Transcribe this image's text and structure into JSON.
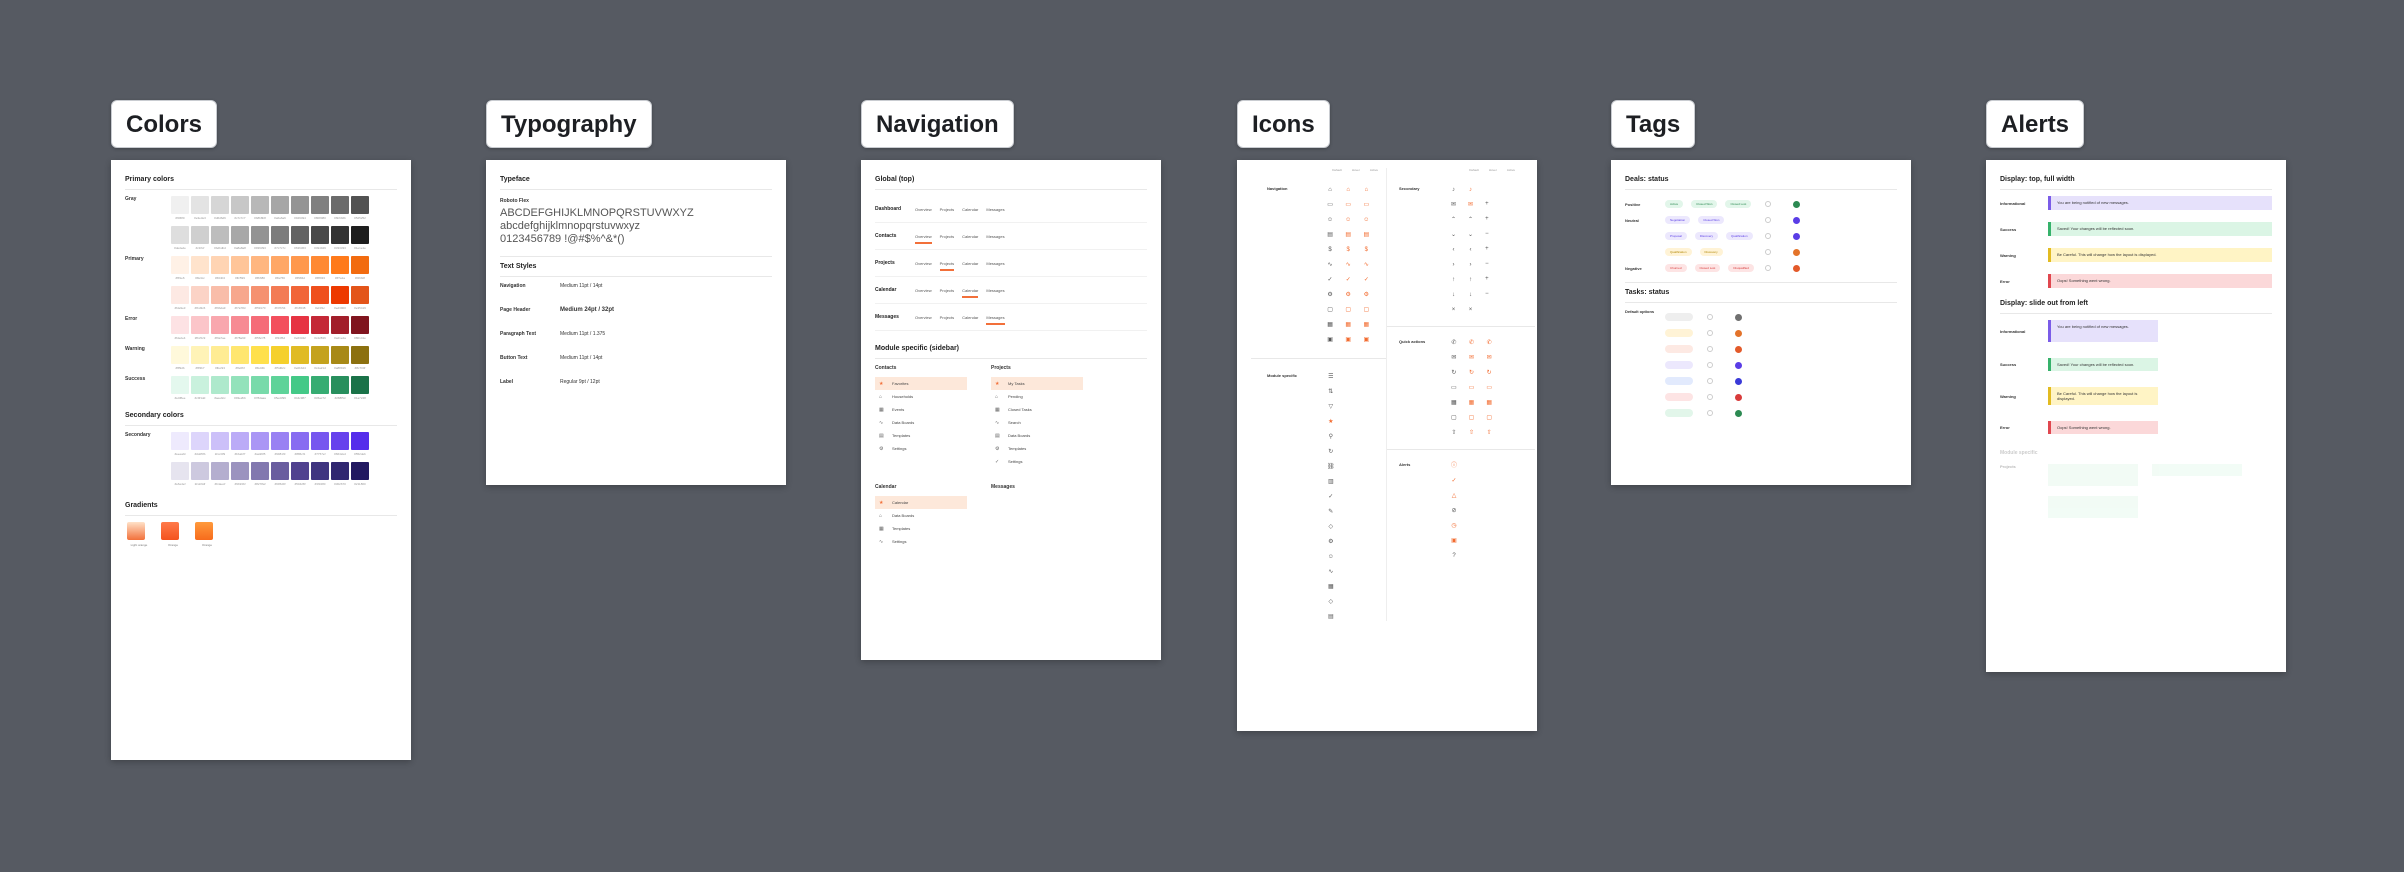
{
  "frames": {
    "colors": "Colors",
    "typography": "Typography",
    "navigation": "Navigation",
    "icons": "Icons",
    "tags": "Tags",
    "alerts": "Alerts"
  },
  "colors": {
    "primary_heading": "Primary colors",
    "secondary_heading": "Secondary colors",
    "gradients_heading": "Gradients",
    "groups": [
      {
        "name": "Gray",
        "rows": [
          [
            "#f0f0f0",
            "#e3e3e3",
            "#d6d6d6",
            "#c7c7c7",
            "#b8b8b8",
            "#a6a6a6",
            "#949494",
            "#808080",
            "#6b6b6b",
            "#525252"
          ],
          [
            "#dedede",
            "#cfcfcf",
            "#bdbdbd",
            "#a8a8a8",
            "#939393",
            "#7c7c7c",
            "#636363",
            "#494949",
            "#333333",
            "#1e1e1e"
          ]
        ]
      },
      {
        "name": "Primary",
        "rows": [
          [
            "#fff1e6",
            "#ffe3cc",
            "#ffd4b3",
            "#ffc599",
            "#ffb680",
            "#ffa766",
            "#ff984d",
            "#ff8933",
            "#ff7a1a",
            "#f26b0f"
          ],
          [
            "#fde9e3",
            "#fbd3c6",
            "#f9bda9",
            "#f7a78d",
            "#f59170",
            "#f37b54",
            "#f16538",
            "#ef4f1c",
            "#ed3900",
            "#e35419"
          ]
        ]
      },
      {
        "name": "Error",
        "rows": [
          [
            "#fde2e4",
            "#fbc5c9",
            "#f9a7ae",
            "#f78a93",
            "#f56c78",
            "#f34f5d",
            "#e63342",
            "#c42836",
            "#a21e2a",
            "#80141e"
          ]
        ]
      },
      {
        "name": "Warning",
        "rows": [
          [
            "#fff9db",
            "#fff3b7",
            "#ffec93",
            "#ffe66f",
            "#ffe04b",
            "#f5d02c",
            "#e0bb24",
            "#c4a21d",
            "#a88916",
            "#8c700f"
          ]
        ]
      },
      {
        "name": "Success",
        "rows": [
          [
            "#e4f8ee",
            "#c9f1dd",
            "#aee9cc",
            "#93e2bb",
            "#78daaa",
            "#5ed399",
            "#44c987",
            "#36ac72",
            "#288f5d",
            "#1a7248"
          ]
        ]
      }
    ],
    "secondary_groups": [
      {
        "name": "Secondary",
        "rows": [
          [
            "#eeeafd",
            "#ddd5fb",
            "#ccc0f9",
            "#bbabf7",
            "#aa96f5",
            "#9981f3",
            "#886cf1",
            "#7757ef",
            "#6642ed",
            "#552deb"
          ],
          [
            "#e6e4ef",
            "#cdc9df",
            "#b4aecf",
            "#9b93bf",
            "#8278af",
            "#695d9f",
            "#50428f",
            "#3f3480",
            "#302670",
            "#211860"
          ]
        ]
      }
    ],
    "gradients": [
      {
        "from": "#ffe1c8",
        "to": "#f2703a",
        "label": "Light orange"
      },
      {
        "from": "#ff7a4a",
        "to": "#f4531f",
        "label": "Orange"
      },
      {
        "from": "#ff9a3c",
        "to": "#f76b1c",
        "label": "Orange"
      }
    ]
  },
  "typography": {
    "typeface_heading": "Typeface",
    "font_name": "Roboto Flex",
    "upper": "ABCDEFGHIJKLMNOPQRSTUVWXYZ",
    "lower": "abcdefghijklmnopqrstuvwxyz",
    "digits": "0123456789 !@#$%^&*()",
    "styles_heading": "Text Styles",
    "styles": [
      {
        "name": "Navigation",
        "sample": "Medium 11pt / 14pt"
      },
      {
        "name": "Page Header",
        "sample": "Medium 24pt / 32pt"
      },
      {
        "name": "Paragraph Text",
        "sample": "Medium 11pt / 1.375"
      },
      {
        "name": "Button Text",
        "sample": "Medium 11pt / 14pt"
      },
      {
        "name": "Label",
        "sample": "Regular 9pt / 12pt"
      }
    ]
  },
  "navigation": {
    "global_heading": "Global (top)",
    "rows": [
      {
        "name": "Dashboard",
        "active": -1
      },
      {
        "name": "Contacts",
        "active": 0
      },
      {
        "name": "Projects",
        "active": 1
      },
      {
        "name": "Calendar",
        "active": 2
      },
      {
        "name": "Messages",
        "active": 3
      }
    ],
    "tabs": [
      "Overview",
      "Projects",
      "Calendar",
      "Messages"
    ],
    "module_heading": "Module specific (sidebar)",
    "modules": [
      {
        "title": "Contacts",
        "items": [
          "Favorites",
          "Households",
          "Events",
          "Data Boards",
          "Templates",
          "Settings"
        ]
      },
      {
        "title": "Projects",
        "items": [
          "My Tasks",
          "Pending",
          "Closed Tasks",
          "Search",
          "Data Boards",
          "Templates",
          "Settings"
        ]
      },
      {
        "title": "Calendar",
        "items": [
          "Calendar",
          "Data Boards",
          "Templates",
          "Settings"
        ]
      },
      {
        "title": "Messages",
        "items": []
      }
    ]
  },
  "icons": {
    "left_sections": [
      "Navigation",
      "Module specific"
    ],
    "right_sections": [
      "Secondary",
      "Quick actions",
      "Alerts"
    ],
    "col_heads": [
      "Default",
      "Hover",
      "Active"
    ]
  },
  "tags": {
    "deals_heading": "Deals: status",
    "tasks_heading": "Tasks: status",
    "rows": [
      {
        "name": "Positive",
        "tags": [
          [
            "Active",
            "#e2f6ea",
            "#2c8a52"
          ],
          [
            "Closed Won",
            "#e2f6ea",
            "#2c8a52"
          ],
          [
            "Closed Lost",
            "#e2f6ea",
            "#2c8a52"
          ]
        ],
        "dot": "#2c8a52"
      },
      {
        "name": "Neutral",
        "tags": [
          [
            "Negotiation",
            "#ece8fd",
            "#5a3de6"
          ],
          [
            "Closed Won",
            "#ece8fd",
            "#5a3de6"
          ]
        ],
        "dot": "#5a3de6"
      },
      {
        "name": "",
        "tags": [
          [
            "Proposal",
            "#ece8fd",
            "#5a3de6"
          ],
          [
            "Discovery",
            "#ece8fd",
            "#5a3de6"
          ],
          [
            "Qualification",
            "#ece8fd",
            "#5a3de6"
          ]
        ],
        "dot": "#5a3de6"
      },
      {
        "name": "",
        "tags": [
          [
            "Qualification",
            "#fff3d6",
            "#b08600"
          ],
          [
            "Discovery",
            "#fff3d6",
            "#b08600"
          ]
        ],
        "dot": "#e3732a"
      },
      {
        "name": "Negative",
        "tags": [
          [
            "Churned",
            "#fde4e4",
            "#d83b3b"
          ],
          [
            "Closed Lost",
            "#fde4e4",
            "#d83b3b"
          ],
          [
            "Disqualified",
            "#fde4e4",
            "#d83b3b"
          ]
        ],
        "dot": "#e35a2a"
      }
    ],
    "task_heading": "Default options"
  },
  "alerts": {
    "top_heading": "Display: top, full width",
    "rows": [
      {
        "name": "Informational",
        "text": "You are being notified of new messages.",
        "bg": "#e6e1fb",
        "bd": "#7b5ce8"
      },
      {
        "name": "Success",
        "text": "Saved! Your changes will be reflected soon.",
        "bg": "#dbf5e5",
        "bd": "#36b26b"
      },
      {
        "name": "Warning",
        "text": "Be Careful. This will change how the layout is displayed.",
        "bg": "#fff4c5",
        "bd": "#e2bb21"
      },
      {
        "name": "Error",
        "text": "Oops! Something went wrong.",
        "bg": "#fbd8d9",
        "bd": "#e0474f"
      }
    ],
    "left_heading": "Display: slide out from left",
    "module_heading": "Module specific",
    "module_row": "Projects"
  }
}
